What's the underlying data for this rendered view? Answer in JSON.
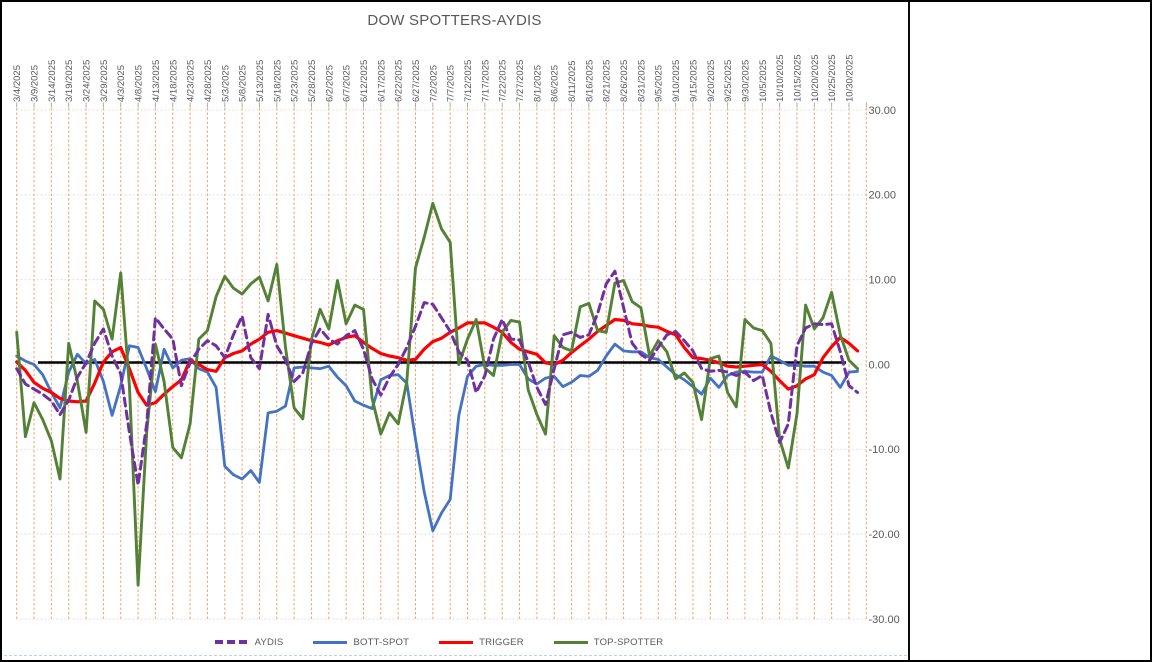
{
  "window": {
    "background": "#ffffff",
    "outer_border_color": "#000000",
    "right_edge_line_color": "#0a0a0a",
    "page_break_line_color": "#aecbe8"
  },
  "chart_data": {
    "type": "line",
    "title": "DOW SPOTTERS-AYDIS",
    "title_color": "#595959",
    "axis_text_color": "#595959",
    "legend_position": "bottom",
    "grid": {
      "vertical_color": "#F2A46F",
      "vertical_style": "dashed",
      "horizontal_color": "#D8D8D8",
      "horizontal_style": "dotted"
    },
    "ylim": [
      -30,
      30
    ],
    "y_tick_labels": [
      "30.00",
      "20.00",
      "10.00",
      "0.00",
      "-10.00",
      "-20.00",
      "-30.00"
    ],
    "y_tick_values": [
      30,
      20,
      10,
      0,
      -10,
      -20,
      -30
    ],
    "x_labels": [
      "3/4/2025",
      "3/9/2025",
      "3/14/2025",
      "3/19/2025",
      "3/24/2025",
      "3/29/2025",
      "4/3/2025",
      "4/8/2025",
      "4/13/2025",
      "4/18/2025",
      "4/23/2025",
      "4/28/2025",
      "5/3/2025",
      "5/8/2025",
      "5/13/2025",
      "5/18/2025",
      "5/23/2025",
      "5/28/2025",
      "6/2/2025",
      "6/7/2025",
      "6/12/2025",
      "6/17/2025",
      "6/22/2025",
      "6/27/2025",
      "7/2/2025",
      "7/7/2025",
      "7/12/2025",
      "7/17/2025",
      "7/22/2025",
      "7/27/2025",
      "8/1/2025",
      "8/6/2025",
      "8/11/2025",
      "8/16/2025",
      "8/21/2025",
      "8/26/2025",
      "8/31/2025",
      "9/5/2025",
      "9/10/2025",
      "9/15/2025",
      "9/20/2025",
      "9/25/2025",
      "9/30/2025",
      "10/5/2025",
      "10/10/2025",
      "10/15/2025",
      "10/20/2025",
      "10/25/2025",
      "10/30/2025"
    ],
    "points_per_label_interval": 2,
    "zero_line": {
      "color": "#000000",
      "value": 0
    },
    "series": [
      {
        "name": "AYDIS",
        "color": "#7030A0",
        "style": "dashed",
        "width": 3,
        "values": [
          -0.5,
          -2.3,
          -2.9,
          -3.5,
          -4.3,
          -5.9,
          -4.2,
          -1.5,
          0.2,
          2.5,
          4.2,
          1.0,
          -1.1,
          -8.0,
          -14.2,
          -7.0,
          5.5,
          4.2,
          3.0,
          -2.5,
          0.2,
          1.8,
          2.8,
          2.2,
          0.8,
          3.5,
          5.7,
          0.8,
          -0.5,
          5.9,
          2.2,
          0.5,
          -2.0,
          -1.0,
          2.5,
          4.2,
          3.0,
          2.4,
          3.4,
          4.0,
          1.8,
          -1.7,
          -3.6,
          -1.5,
          0.0,
          2.0,
          4.5,
          7.3,
          7.1,
          5.5,
          3.9,
          1.5,
          0.5,
          -3.3,
          -1.3,
          3.0,
          5.3,
          3.0,
          2.9,
          0.3,
          -2.7,
          -4.7,
          -0.5,
          3.5,
          3.8,
          3.2,
          3.5,
          6.0,
          9.5,
          11.0,
          6.7,
          2.5,
          1.2,
          0.5,
          2.0,
          3.5,
          3.9,
          2.8,
          1.6,
          -0.5,
          -0.8,
          -0.7,
          -0.9,
          -1.3,
          -0.9,
          -1.9,
          -1.3,
          -5.7,
          -9.2,
          -7.0,
          2.2,
          4.3,
          4.8,
          4.7,
          4.8,
          1.5,
          -2.5,
          -3.3
        ]
      },
      {
        "name": "BOTT-SPOT",
        "color": "#4472C4",
        "style": "solid",
        "width": 2.8,
        "values": [
          1.0,
          0.4,
          0.0,
          -1.2,
          -3.3,
          -5.1,
          -0.9,
          1.2,
          0.1,
          0.6,
          -2.0,
          -6.0,
          -2.5,
          2.2,
          2.0,
          -0.5,
          -3.2,
          1.8,
          -0.4,
          0.5,
          0.7,
          -0.5,
          -0.9,
          -2.7,
          -12.0,
          -13.0,
          -13.5,
          -12.5,
          -13.9,
          -5.7,
          -5.5,
          -4.9,
          -0.4,
          -0.3,
          -0.4,
          -0.5,
          -0.2,
          -1.5,
          -2.5,
          -4.3,
          -4.8,
          -5.2,
          -1.8,
          -1.3,
          -1.2,
          -2.2,
          -8.8,
          -15.0,
          -19.6,
          -17.5,
          -15.9,
          -6.0,
          -1.4,
          -0.2,
          0.0,
          -0.1,
          -0.1,
          0.0,
          0.0,
          -1.7,
          -2.3,
          -1.6,
          -1.4,
          -2.6,
          -2.1,
          -1.3,
          -1.4,
          -0.7,
          1.0,
          2.4,
          1.6,
          1.5,
          1.5,
          0.8,
          0.6,
          -0.3,
          -1.2,
          -1.8,
          -2.6,
          -3.5,
          -1.6,
          -2.7,
          -1.3,
          -0.9,
          -0.8,
          -0.9,
          -0.9,
          1.0,
          0.5,
          -0.1,
          -0.1,
          -0.2,
          -0.2,
          -0.9,
          -1.3,
          -2.7,
          -0.9,
          -0.8
        ]
      },
      {
        "name": "TRIGGER",
        "color": "#FF0000",
        "style": "solid",
        "width": 3.2,
        "values": [
          0.3,
          -0.7,
          -2.1,
          -2.8,
          -3.3,
          -4.0,
          -4.3,
          -4.4,
          -4.3,
          -2.2,
          0.3,
          1.5,
          2.0,
          -0.5,
          -3.3,
          -4.8,
          -4.5,
          -3.5,
          -2.6,
          -1.8,
          0.5,
          0.0,
          -0.6,
          -0.8,
          0.8,
          1.3,
          1.6,
          2.4,
          3.0,
          3.8,
          4.0,
          3.7,
          3.4,
          3.1,
          2.8,
          2.6,
          2.3,
          2.8,
          3.2,
          3.4,
          2.6,
          1.9,
          1.3,
          1.0,
          0.8,
          0.5,
          0.6,
          1.8,
          2.7,
          3.1,
          3.8,
          4.3,
          4.9,
          4.9,
          4.9,
          4.4,
          3.8,
          2.6,
          1.8,
          1.5,
          1.2,
          0.2,
          0.0,
          0.5,
          1.4,
          2.2,
          3.0,
          3.9,
          4.6,
          5.3,
          5.2,
          4.8,
          4.7,
          4.5,
          4.4,
          3.9,
          3.5,
          2.0,
          0.8,
          0.7,
          0.5,
          0.2,
          -0.2,
          -0.3,
          -0.2,
          -0.1,
          0.0,
          -0.8,
          -1.9,
          -2.9,
          -2.5,
          -1.7,
          -1.2,
          0.8,
          2.1,
          3.2,
          2.5,
          1.6
        ]
      },
      {
        "name": "TOP-SPOTTER",
        "color": "#538135",
        "style": "solid",
        "width": 2.9,
        "values": [
          3.8,
          -8.5,
          -4.5,
          -6.5,
          -9.0,
          -13.5,
          2.5,
          -2.0,
          -8.0,
          7.5,
          6.5,
          3.0,
          10.8,
          -2.5,
          -26.0,
          -8.0,
          2.4,
          -2.0,
          -9.8,
          -11.0,
          -7.0,
          3.0,
          4.0,
          8.0,
          10.4,
          9.0,
          8.3,
          9.5,
          10.3,
          7.5,
          11.8,
          2.0,
          -5.1,
          -6.4,
          3.0,
          6.5,
          4.2,
          9.9,
          4.8,
          7.0,
          6.5,
          -4.0,
          -8.2,
          -5.7,
          -7.0,
          -2.0,
          11.4,
          15.0,
          19.0,
          16.0,
          14.4,
          0.0,
          3.0,
          5.3,
          -0.4,
          -1.3,
          3.8,
          5.2,
          5.0,
          -3.0,
          -5.9,
          -8.2,
          3.4,
          2.0,
          1.6,
          6.8,
          7.2,
          4.0,
          3.8,
          9.6,
          9.9,
          7.4,
          6.7,
          1.0,
          2.8,
          1.5,
          -1.7,
          -1.0,
          -2.1,
          -6.5,
          0.7,
          1.0,
          -3.3,
          -5.0,
          5.3,
          4.3,
          4.0,
          2.5,
          -8.8,
          -12.2,
          -5.8,
          7.0,
          4.2,
          5.5,
          8.5,
          3.5,
          0.5,
          -0.5
        ]
      }
    ]
  }
}
